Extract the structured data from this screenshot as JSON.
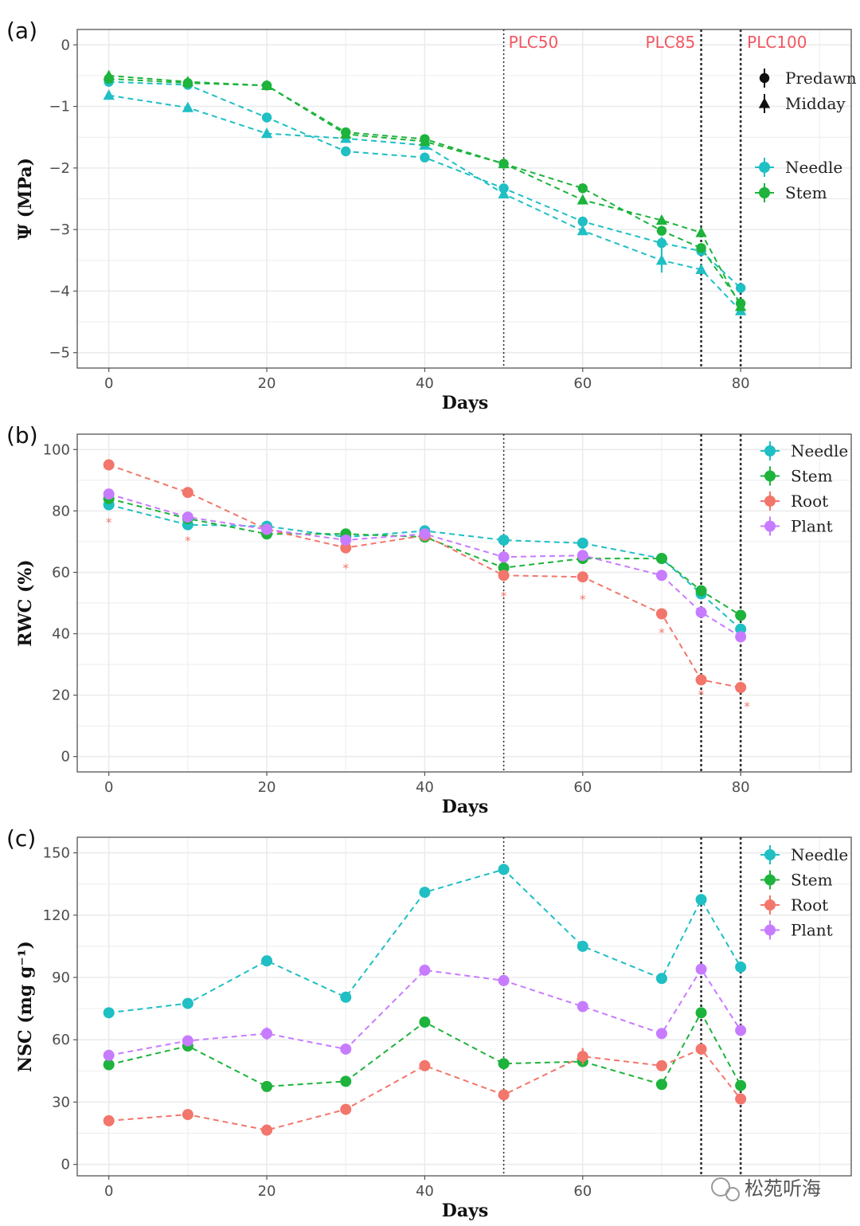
{
  "watermark": "松苑听海",
  "colors": {
    "needle": "#1fbfc4",
    "stem": "#1db33c",
    "root": "#f2766b",
    "plant": "#c77cff",
    "plc": "#f25560",
    "frame": "#555555",
    "grid": "#ebebeb"
  },
  "chart_data": [
    {
      "panel_label": "(a)",
      "type": "line",
      "xlabel": "Days",
      "ylabel": "Ψ (MPa)",
      "xlim": [
        -4,
        94
      ],
      "ylim": [
        -5.25,
        0.25
      ],
      "xticks": [
        0,
        20,
        40,
        60,
        80
      ],
      "xtick_labels": [
        "0",
        "20",
        "40",
        "60",
        "80"
      ],
      "yticks": [
        0,
        -1,
        -2,
        -3,
        -4,
        -5
      ],
      "ytick_labels": [
        "0",
        "−1",
        "−2",
        "−3",
        "−4",
        "−5"
      ],
      "vlines": [
        {
          "x": 50,
          "label": "PLC50"
        },
        {
          "x": 75,
          "label": "PLC85"
        },
        {
          "x": 80,
          "label": "PLC100"
        }
      ],
      "legend": {
        "shape_title": [
          {
            "label": "Predawn",
            "shape": "circle"
          },
          {
            "label": "Midday",
            "shape": "triangle"
          }
        ],
        "color_title": [
          {
            "label": "Needle",
            "color": "#1fbfc4"
          },
          {
            "label": "Stem",
            "color": "#1db33c"
          }
        ]
      },
      "series": [
        {
          "name": "Needle Predawn",
          "color": "#1fbfc4",
          "shape": "circle",
          "x": [
            0,
            10,
            20,
            30,
            40,
            50,
            60,
            70,
            75,
            80
          ],
          "values": [
            -0.6,
            -0.65,
            -1.18,
            -1.73,
            -1.83,
            -2.33,
            -2.87,
            -3.22,
            -3.35,
            -3.95
          ],
          "err": [
            0,
            0,
            0,
            0,
            0,
            0,
            0.08,
            0.1,
            0,
            0.06
          ]
        },
        {
          "name": "Needle Midday",
          "color": "#1fbfc4",
          "shape": "triangle",
          "x": [
            0,
            10,
            20,
            30,
            40,
            50,
            60,
            70,
            75,
            80
          ],
          "values": [
            -0.82,
            -1.02,
            -1.44,
            -1.52,
            -1.63,
            -2.42,
            -3.02,
            -3.5,
            -3.65,
            -4.32
          ],
          "err": [
            0,
            0,
            0,
            0,
            0,
            0.05,
            0.06,
            0.2,
            0,
            0.05
          ]
        },
        {
          "name": "Stem Predawn",
          "color": "#1db33c",
          "shape": "circle",
          "x": [
            0,
            10,
            20,
            30,
            40,
            50,
            60,
            70,
            75,
            80
          ],
          "values": [
            -0.55,
            -0.62,
            -0.66,
            -1.42,
            -1.53,
            -1.93,
            -2.33,
            -3.02,
            -3.3,
            -4.2
          ],
          "err": [
            0,
            0,
            0,
            0,
            0,
            0,
            0,
            0,
            0.06,
            0
          ]
        },
        {
          "name": "Stem Midday",
          "color": "#1db33c",
          "shape": "triangle",
          "x": [
            0,
            10,
            20,
            30,
            40,
            50,
            60,
            70,
            75,
            80
          ],
          "values": [
            -0.5,
            -0.6,
            -0.66,
            -1.45,
            -1.57,
            -1.93,
            -2.52,
            -2.85,
            -3.05,
            -4.25
          ],
          "err": [
            0,
            0,
            0,
            0,
            0,
            0,
            0,
            0,
            0,
            0.06
          ]
        }
      ]
    },
    {
      "panel_label": "(b)",
      "type": "line",
      "xlabel": "Days",
      "ylabel": "RWC (%)",
      "xlim": [
        -4,
        94
      ],
      "ylim": [
        -5,
        105
      ],
      "xticks": [
        0,
        20,
        40,
        60,
        80
      ],
      "xtick_labels": [
        "0",
        "20",
        "40",
        "60",
        "80"
      ],
      "yticks": [
        0,
        20,
        40,
        60,
        80,
        100
      ],
      "ytick_labels": [
        "0",
        "20",
        "40",
        "60",
        "80",
        "100"
      ],
      "vlines": [
        {
          "x": 50
        },
        {
          "x": 75
        },
        {
          "x": 80
        }
      ],
      "legend": [
        {
          "label": "Needle",
          "color": "#1fbfc4"
        },
        {
          "label": "Stem",
          "color": "#1db33c"
        },
        {
          "label": "Root",
          "color": "#f2766b"
        },
        {
          "label": "Plant",
          "color": "#c77cff"
        }
      ],
      "annotations": [
        {
          "text": "*",
          "x": 0,
          "y": 77
        },
        {
          "text": "*",
          "x": 10,
          "y": 71
        },
        {
          "text": "*",
          "x": 30,
          "y": 62
        },
        {
          "text": "*",
          "x": 50,
          "y": 53
        },
        {
          "text": "*",
          "x": 60,
          "y": 52
        },
        {
          "text": "*",
          "x": 70,
          "y": 41
        },
        {
          "text": "*",
          "x": 75,
          "y": 21
        },
        {
          "text": "*",
          "x": 80,
          "y": 17
        }
      ],
      "series": [
        {
          "name": "Needle",
          "color": "#1fbfc4",
          "x": [
            0,
            10,
            20,
            30,
            40,
            50,
            60,
            70,
            75,
            80
          ],
          "values": [
            82,
            75.5,
            75,
            71.5,
            73.5,
            70.5,
            69.5,
            64.5,
            53,
            41.5
          ]
        },
        {
          "name": "Stem",
          "color": "#1db33c",
          "x": [
            0,
            10,
            20,
            30,
            40,
            50,
            60,
            70,
            75,
            80
          ],
          "values": [
            84,
            77.5,
            72.5,
            72.5,
            71.5,
            61.5,
            64.5,
            64.5,
            54,
            46
          ]
        },
        {
          "name": "Root",
          "color": "#f2766b",
          "x": [
            0,
            10,
            20,
            30,
            40,
            50,
            60,
            70,
            75,
            80
          ],
          "values": [
            95,
            86,
            74,
            68,
            72,
            59,
            58.5,
            46.5,
            25,
            22.5
          ]
        },
        {
          "name": "Plant",
          "color": "#c77cff",
          "x": [
            0,
            10,
            20,
            30,
            40,
            50,
            60,
            70,
            75,
            80
          ],
          "values": [
            85.5,
            78,
            74,
            70.5,
            72.5,
            65,
            65.5,
            59,
            47,
            39
          ]
        }
      ]
    },
    {
      "panel_label": "(c)",
      "type": "line",
      "xlabel": "Days",
      "ylabel": "NSC (mg g⁻¹)",
      "xlim": [
        -4,
        94
      ],
      "ylim": [
        -5.5,
        157.5
      ],
      "xticks": [
        0,
        20,
        40,
        60
      ],
      "xtick_labels": [
        "0",
        "20",
        "40",
        "60"
      ],
      "yticks": [
        0,
        30,
        60,
        90,
        120,
        150
      ],
      "ytick_labels": [
        "0",
        "30",
        "60",
        "90",
        "120",
        "150"
      ],
      "vlines": [
        {
          "x": 50
        },
        {
          "x": 75
        },
        {
          "x": 80
        }
      ],
      "legend": [
        {
          "label": "Needle",
          "color": "#1fbfc4"
        },
        {
          "label": "Stem",
          "color": "#1db33c"
        },
        {
          "label": "Root",
          "color": "#f2766b"
        },
        {
          "label": "Plant",
          "color": "#c77cff"
        }
      ],
      "series": [
        {
          "name": "Needle",
          "color": "#1fbfc4",
          "x": [
            0,
            10,
            20,
            30,
            40,
            50,
            60,
            70,
            75,
            80
          ],
          "values": [
            73,
            77.5,
            98,
            80.5,
            131,
            142,
            105,
            89.5,
            127.5,
            95
          ],
          "err": [
            0,
            0,
            0,
            0,
            0,
            1.5,
            0,
            0,
            0,
            0
          ]
        },
        {
          "name": "Stem",
          "color": "#1db33c",
          "x": [
            0,
            10,
            20,
            30,
            40,
            50,
            60,
            70,
            75,
            80
          ],
          "values": [
            48,
            57,
            37.5,
            40,
            68.5,
            48.5,
            49.5,
            38.5,
            73,
            38
          ],
          "err": [
            0,
            0,
            0,
            0,
            0,
            0,
            0,
            0,
            0,
            0
          ]
        },
        {
          "name": "Root",
          "color": "#f2766b",
          "x": [
            0,
            10,
            20,
            30,
            40,
            50,
            60,
            70,
            75,
            80
          ],
          "values": [
            21,
            24,
            16.5,
            26.5,
            47.5,
            33.5,
            52,
            47.5,
            55.5,
            31.5
          ],
          "err": [
            0,
            0,
            0,
            0,
            0,
            0,
            4,
            0,
            0,
            0
          ]
        },
        {
          "name": "Plant",
          "color": "#c77cff",
          "x": [
            0,
            10,
            20,
            30,
            40,
            50,
            60,
            70,
            75,
            80
          ],
          "values": [
            52.5,
            59.5,
            63,
            55.5,
            93.5,
            88.5,
            76,
            63,
            94,
            64.5
          ],
          "err": [
            0,
            0,
            3,
            0,
            0,
            0,
            0,
            0,
            2,
            0
          ]
        }
      ]
    }
  ]
}
